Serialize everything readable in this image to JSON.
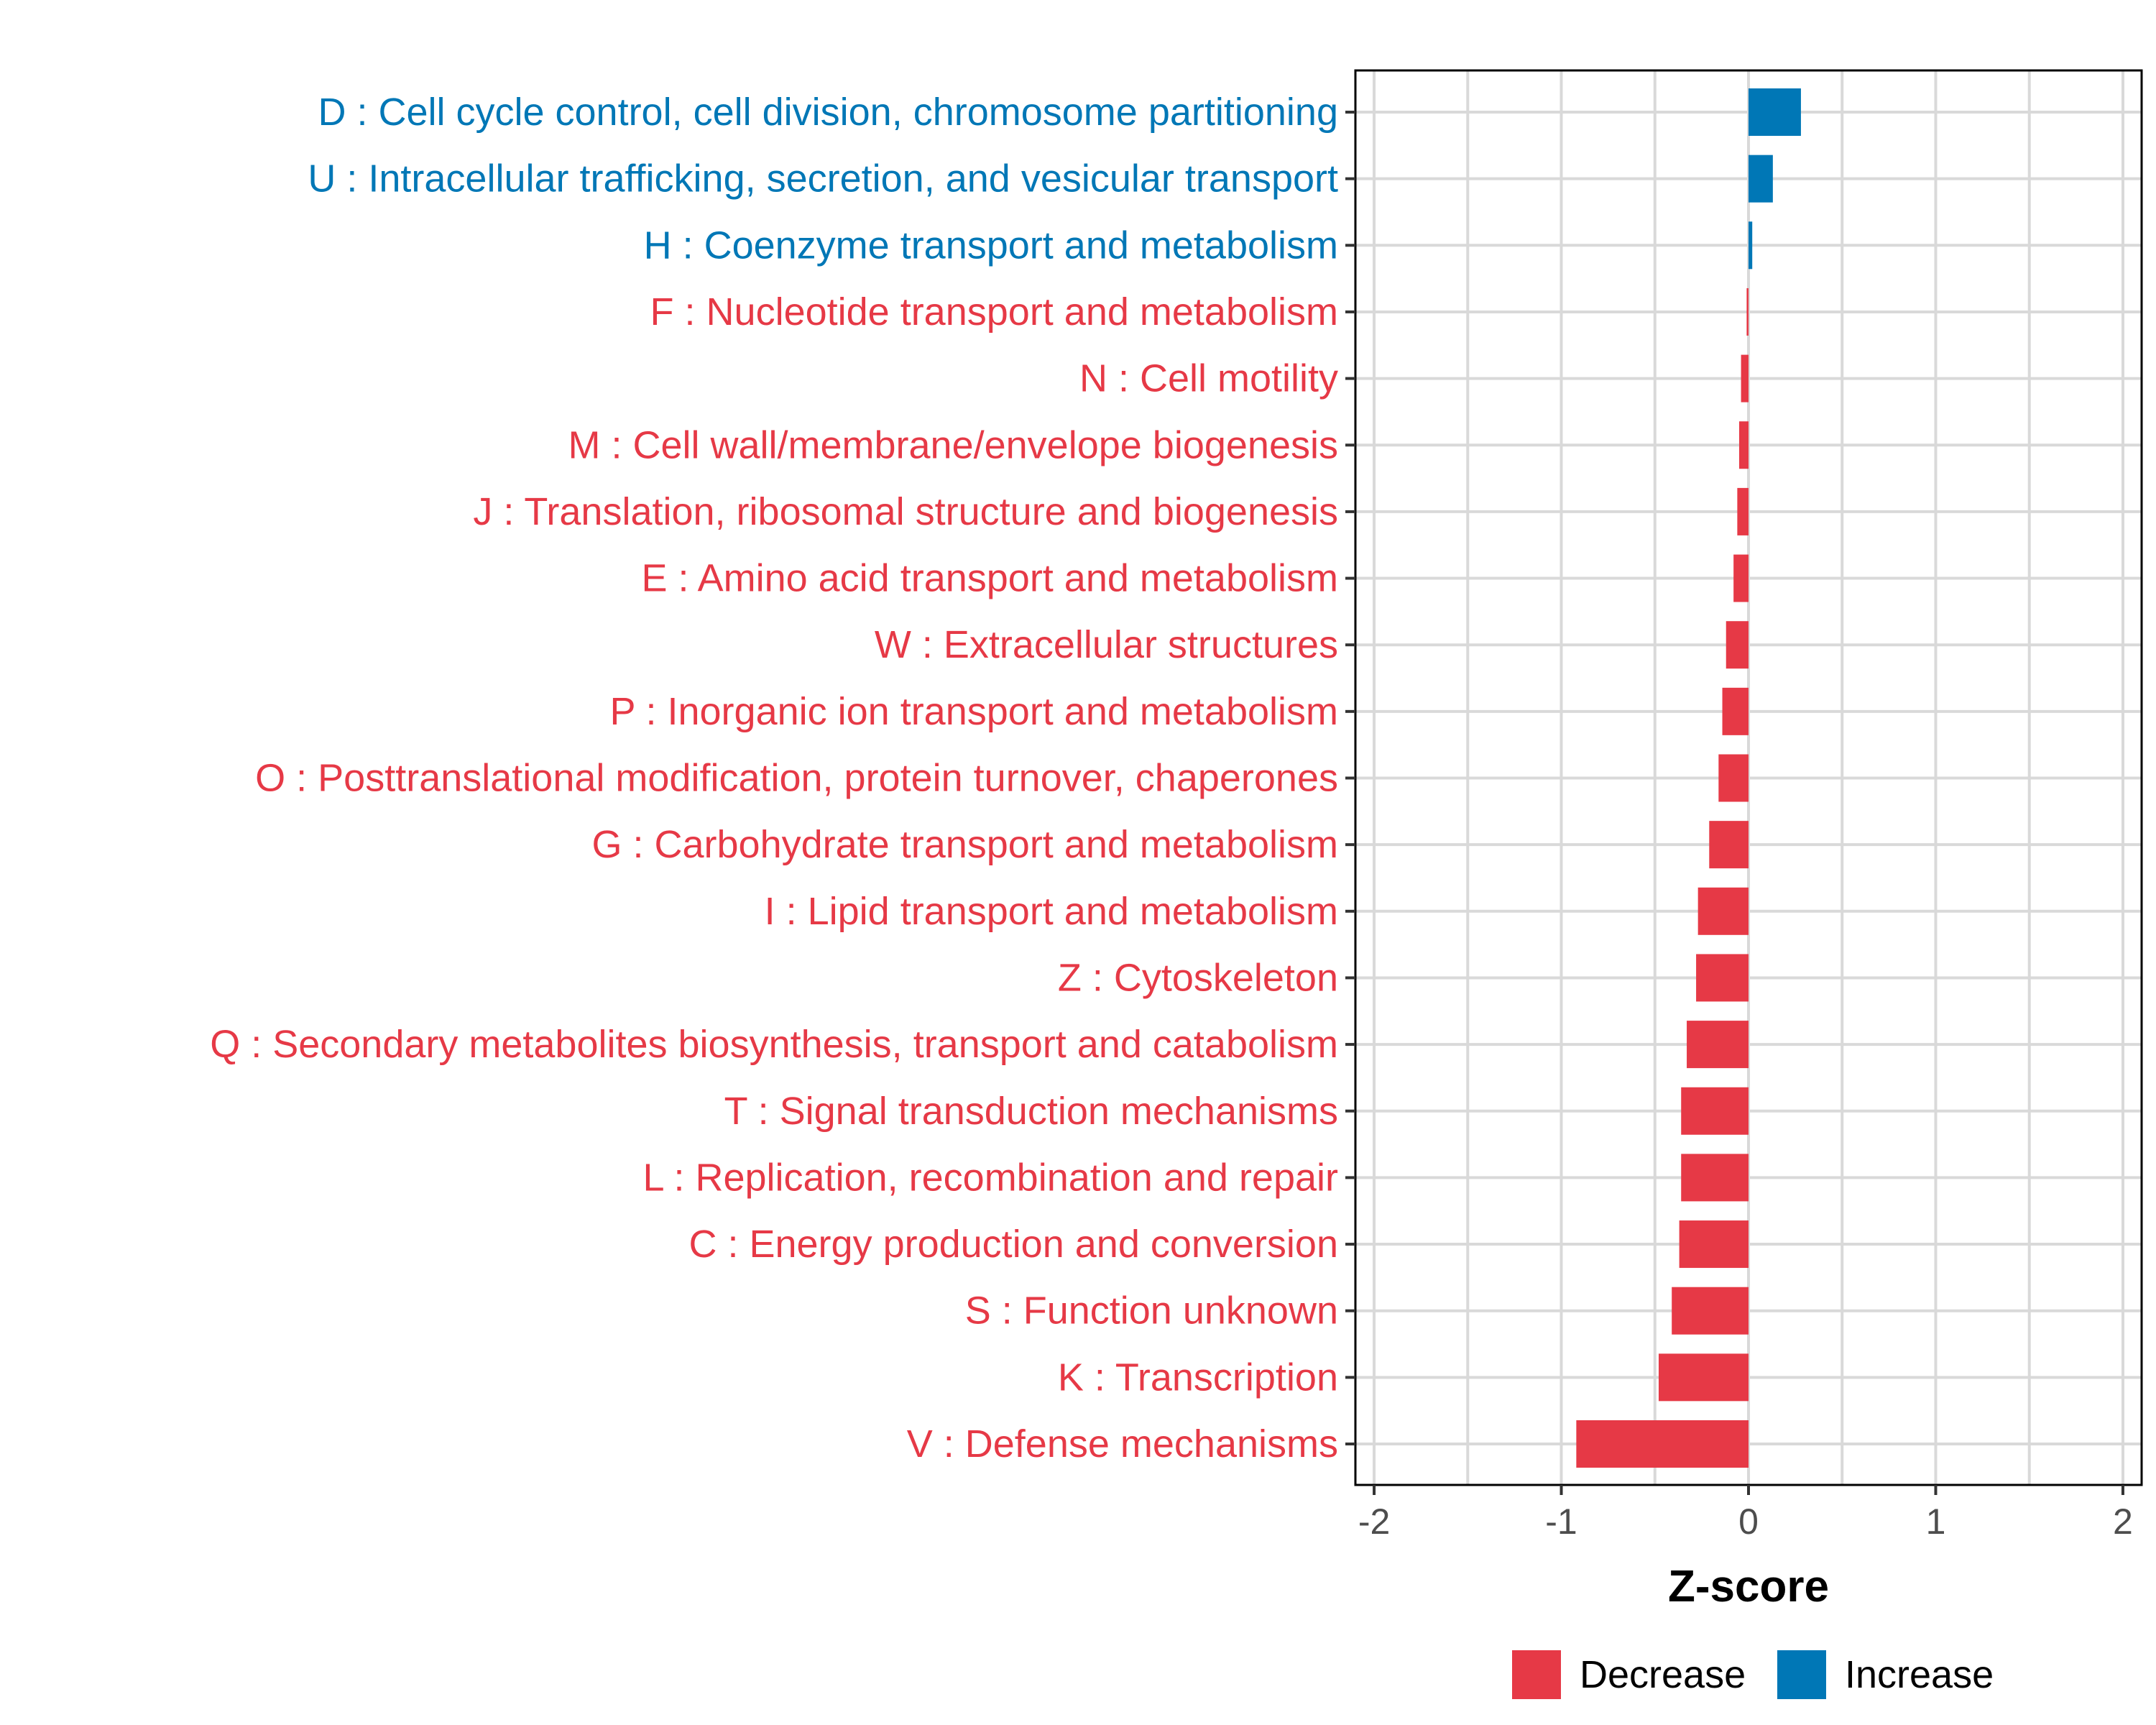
{
  "chart_data": {
    "type": "bar",
    "orientation": "horizontal",
    "xlabel": "Z-score",
    "xlim": [
      -2.1,
      2.1
    ],
    "xticks": [
      -2,
      -1,
      0,
      1,
      2
    ],
    "xtick_labels": [
      "-2",
      "-1",
      "0",
      "1",
      "2"
    ],
    "grid": true,
    "legend_position": "bottom",
    "colors": {
      "Decrease": "#E63946",
      "Increase": "#0077B6"
    },
    "legend": [
      {
        "name": "Decrease",
        "label": "Decrease",
        "color": "#E63946"
      },
      {
        "name": "Increase",
        "label": "Increase",
        "color": "#0077B6"
      }
    ],
    "categories": [
      "D : Cell cycle control, cell division, chromosome partitioning",
      "U : Intracellular trafficking, secretion, and vesicular transport",
      "H : Coenzyme transport and metabolism",
      "F : Nucleotide transport and metabolism",
      "N : Cell motility",
      "M : Cell wall/membrane/envelope biogenesis",
      "J : Translation, ribosomal structure and biogenesis",
      "E : Amino acid transport and metabolism",
      "W : Extracellular structures",
      "P : Inorganic ion transport and metabolism",
      "O : Posttranslational modification, protein turnover, chaperones",
      "G : Carbohydrate transport and metabolism",
      "I : Lipid transport and metabolism",
      "Z : Cytoskeleton",
      "Q : Secondary metabolites biosynthesis, transport and catabolism",
      "T : Signal transduction mechanisms",
      "L : Replication, recombination and repair",
      "C : Energy production and conversion",
      "S : Function unknown",
      "K : Transcription",
      "V : Defense mechanisms"
    ],
    "values": [
      0.28,
      0.13,
      0.02,
      -0.01,
      -0.04,
      -0.05,
      -0.06,
      -0.08,
      -0.12,
      -0.14,
      -0.16,
      -0.21,
      -0.27,
      -0.28,
      -0.33,
      -0.36,
      -0.36,
      -0.37,
      -0.41,
      -0.48,
      -0.92
    ],
    "directions": [
      "Increase",
      "Increase",
      "Increase",
      "Decrease",
      "Decrease",
      "Decrease",
      "Decrease",
      "Decrease",
      "Decrease",
      "Decrease",
      "Decrease",
      "Decrease",
      "Decrease",
      "Decrease",
      "Decrease",
      "Decrease",
      "Decrease",
      "Decrease",
      "Decrease",
      "Decrease",
      "Decrease"
    ]
  }
}
